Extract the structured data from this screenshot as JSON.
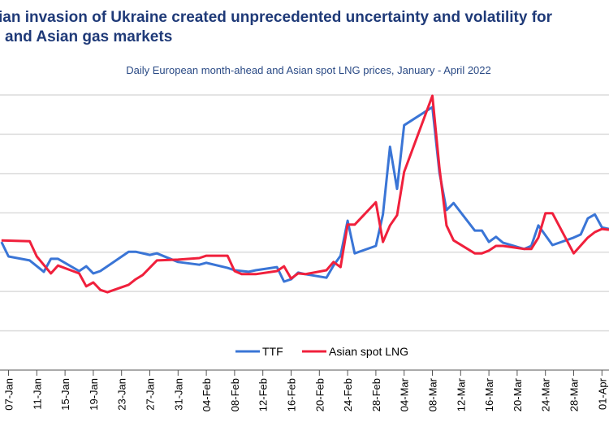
{
  "title_line1": "ian invasion of Ukraine created unprecedented uncertainty and volatility for",
  "title_line2": "and Asian gas markets",
  "chart_data": {
    "type": "line",
    "subtitle": "Daily European month-ahead and Asian spot LNG prices, January - April 2022",
    "xlabel": "",
    "ylabel": "",
    "ylim": [
      0,
      70
    ],
    "grid": true,
    "legend_position": "bottom",
    "x_tick_labels": [
      "07-Jan",
      "11-Jan",
      "15-Jan",
      "19-Jan",
      "23-Jan",
      "27-Jan",
      "31-Jan",
      "04-Feb",
      "08-Feb",
      "12-Feb",
      "16-Feb",
      "20-Feb",
      "24-Feb",
      "28-Feb",
      "04-Mar",
      "08-Mar",
      "12-Mar",
      "16-Mar",
      "20-Mar",
      "24-Mar",
      "28-Mar",
      "01-Apr"
    ],
    "series": [
      {
        "name": "TTF",
        "color": "#3a75d6",
        "points": [
          [
            "2022-01-06",
            32.6
          ],
          [
            "2022-01-07",
            28.9
          ],
          [
            "2022-01-10",
            27.9
          ],
          [
            "2022-01-12",
            25.0
          ],
          [
            "2022-01-13",
            28.3
          ],
          [
            "2022-01-14",
            28.3
          ],
          [
            "2022-01-17",
            25.2
          ],
          [
            "2022-01-18",
            26.4
          ],
          [
            "2022-01-19",
            24.6
          ],
          [
            "2022-01-20",
            25.2
          ],
          [
            "2022-01-24",
            30.1
          ],
          [
            "2022-01-25",
            30.1
          ],
          [
            "2022-01-27",
            29.3
          ],
          [
            "2022-01-28",
            29.7
          ],
          [
            "2022-01-31",
            27.5
          ],
          [
            "2022-02-03",
            26.8
          ],
          [
            "2022-02-04",
            27.3
          ],
          [
            "2022-02-07",
            26.0
          ],
          [
            "2022-02-08",
            25.4
          ],
          [
            "2022-02-10",
            25.0
          ],
          [
            "2022-02-11",
            25.4
          ],
          [
            "2022-02-14",
            26.2
          ],
          [
            "2022-02-15",
            22.5
          ],
          [
            "2022-02-16",
            23.1
          ],
          [
            "2022-02-17",
            24.8
          ],
          [
            "2022-02-18",
            24.4
          ],
          [
            "2022-02-21",
            23.5
          ],
          [
            "2022-02-22",
            26.6
          ],
          [
            "2022-02-23",
            29.1
          ],
          [
            "2022-02-24",
            38.0
          ],
          [
            "2022-02-25",
            29.7
          ],
          [
            "2022-02-28",
            31.6
          ],
          [
            "2022-03-01",
            39.6
          ],
          [
            "2022-03-02",
            56.8
          ],
          [
            "2022-03-03",
            46.1
          ],
          [
            "2022-03-04",
            62.3
          ],
          [
            "2022-03-08",
            66.9
          ],
          [
            "2022-03-09",
            50.2
          ],
          [
            "2022-03-10",
            40.7
          ],
          [
            "2022-03-11",
            42.5
          ],
          [
            "2022-03-14",
            35.5
          ],
          [
            "2022-03-15",
            35.5
          ],
          [
            "2022-03-16",
            32.6
          ],
          [
            "2022-03-17",
            33.9
          ],
          [
            "2022-03-18",
            32.4
          ],
          [
            "2022-03-21",
            30.8
          ],
          [
            "2022-03-22",
            31.6
          ],
          [
            "2022-03-23",
            36.8
          ],
          [
            "2022-03-25",
            31.8
          ],
          [
            "2022-03-28",
            33.7
          ],
          [
            "2022-03-29",
            34.5
          ],
          [
            "2022-03-30",
            38.6
          ],
          [
            "2022-03-31",
            39.6
          ],
          [
            "2022-04-01",
            36.3
          ],
          [
            "2022-04-02",
            35.9
          ]
        ]
      },
      {
        "name": "Asian spot LNG",
        "color": "#f0203c",
        "points": [
          [
            "2022-01-06",
            33.0
          ],
          [
            "2022-01-10",
            32.8
          ],
          [
            "2022-01-11",
            28.9
          ],
          [
            "2022-01-13",
            24.6
          ],
          [
            "2022-01-14",
            26.6
          ],
          [
            "2022-01-17",
            24.6
          ],
          [
            "2022-01-18",
            21.3
          ],
          [
            "2022-01-19",
            22.3
          ],
          [
            "2022-01-20",
            20.4
          ],
          [
            "2022-01-21",
            19.8
          ],
          [
            "2022-01-24",
            21.7
          ],
          [
            "2022-01-25",
            23.1
          ],
          [
            "2022-01-26",
            24.2
          ],
          [
            "2022-01-28",
            27.9
          ],
          [
            "2022-01-31",
            28.1
          ],
          [
            "2022-02-03",
            28.5
          ],
          [
            "2022-02-04",
            29.1
          ],
          [
            "2022-02-07",
            29.1
          ],
          [
            "2022-02-08",
            25.2
          ],
          [
            "2022-02-09",
            24.4
          ],
          [
            "2022-02-11",
            24.4
          ],
          [
            "2022-02-14",
            25.2
          ],
          [
            "2022-02-15",
            26.4
          ],
          [
            "2022-02-16",
            23.3
          ],
          [
            "2022-02-17",
            24.6
          ],
          [
            "2022-02-18",
            24.4
          ],
          [
            "2022-02-21",
            25.4
          ],
          [
            "2022-02-22",
            27.5
          ],
          [
            "2022-02-23",
            26.2
          ],
          [
            "2022-02-24",
            37.0
          ],
          [
            "2022-02-25",
            37.0
          ],
          [
            "2022-02-28",
            42.7
          ],
          [
            "2022-03-01",
            32.6
          ],
          [
            "2022-03-02",
            36.8
          ],
          [
            "2022-03-03",
            39.4
          ],
          [
            "2022-03-04",
            50.4
          ],
          [
            "2022-03-08",
            69.8
          ],
          [
            "2022-03-09",
            51.4
          ],
          [
            "2022-03-10",
            36.8
          ],
          [
            "2022-03-11",
            33.0
          ],
          [
            "2022-03-14",
            29.7
          ],
          [
            "2022-03-15",
            29.7
          ],
          [
            "2022-03-16",
            30.4
          ],
          [
            "2022-03-17",
            31.6
          ],
          [
            "2022-03-18",
            31.6
          ],
          [
            "2022-03-21",
            30.8
          ],
          [
            "2022-03-22",
            30.8
          ],
          [
            "2022-03-23",
            33.7
          ],
          [
            "2022-03-24",
            39.9
          ],
          [
            "2022-03-25",
            39.9
          ],
          [
            "2022-03-28",
            29.7
          ],
          [
            "2022-03-30",
            33.7
          ],
          [
            "2022-03-31",
            35.1
          ],
          [
            "2022-04-01",
            35.9
          ],
          [
            "2022-04-02",
            35.7
          ]
        ]
      }
    ]
  }
}
